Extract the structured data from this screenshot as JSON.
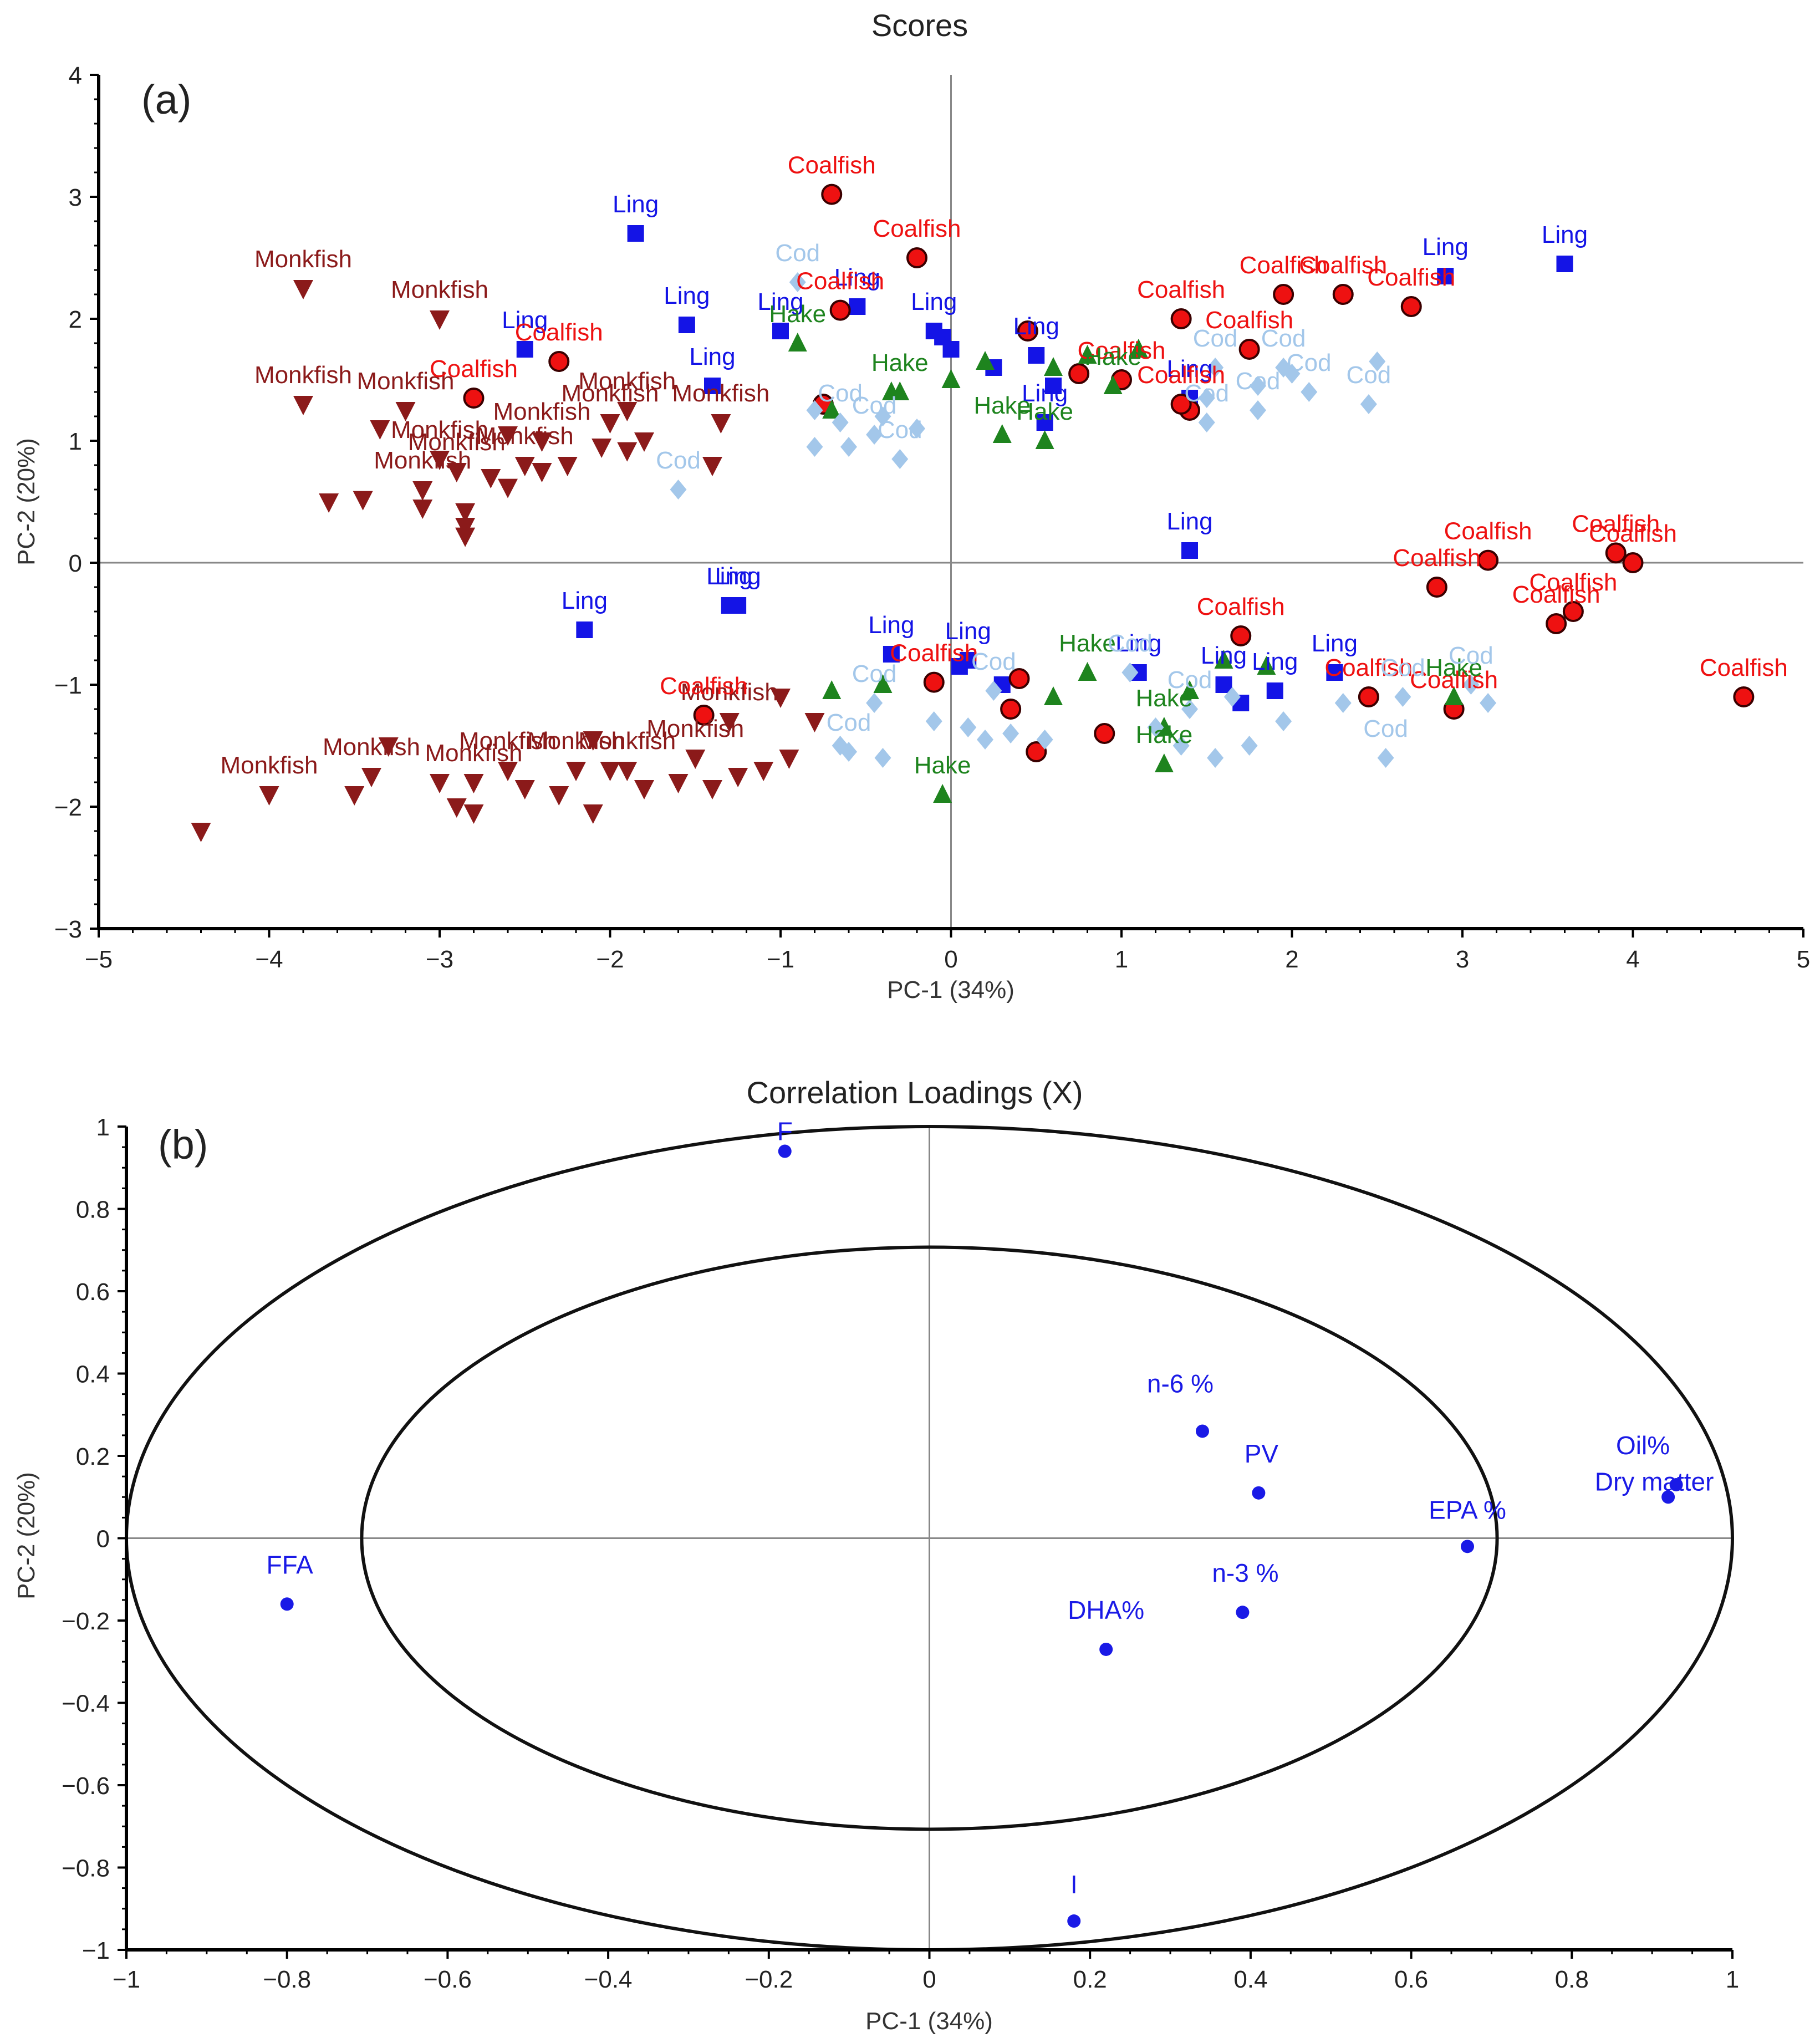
{
  "chart_data": [
    {
      "panel_label": "(a)",
      "type": "scatter",
      "title": "Scores",
      "xlabel": "PC-1 (34%)",
      "ylabel": "PC-2 (20%)",
      "xlim": [
        -5,
        5
      ],
      "ylim": [
        -3,
        4
      ],
      "xticks": [
        -5,
        -4,
        -3,
        -2,
        -1,
        0,
        1,
        2,
        3,
        4,
        5
      ],
      "yticks": [
        -3,
        -2,
        -1,
        0,
        1,
        2,
        3,
        4
      ],
      "grid": false,
      "reference_lines": {
        "x": 0,
        "y": 0
      },
      "series": [
        {
          "name": "Monkfish",
          "color": "#8b1a1a",
          "marker": "triangle-down",
          "labeled_points": [
            {
              "x": -3.8,
              "y": 2.25
            },
            {
              "x": -3.0,
              "y": 2.0
            },
            {
              "x": -3.8,
              "y": 1.3
            },
            {
              "x": -3.2,
              "y": 1.25
            },
            {
              "x": -2.0,
              "y": 1.15
            },
            {
              "x": -3.0,
              "y": 0.85
            },
            {
              "x": -1.35,
              "y": 1.15
            },
            {
              "x": -1.9,
              "y": 1.25
            },
            {
              "x": -2.5,
              "y": 0.8
            },
            {
              "x": -2.9,
              "y": 0.75
            },
            {
              "x": -3.1,
              "y": 0.6
            },
            {
              "x": -2.4,
              "y": 1.0
            },
            {
              "x": -4.0,
              "y": -1.9
            },
            {
              "x": -3.4,
              "y": -1.75
            },
            {
              "x": -2.6,
              "y": -1.7
            },
            {
              "x": -2.2,
              "y": -1.7
            },
            {
              "x": -1.9,
              "y": -1.7
            },
            {
              "x": -1.5,
              "y": -1.6
            },
            {
              "x": -2.8,
              "y": -1.8
            },
            {
              "x": -1.3,
              "y": -1.3
            }
          ],
          "points": [
            {
              "x": -4.4,
              "y": -2.2
            },
            {
              "x": -3.65,
              "y": 0.5
            },
            {
              "x": -3.45,
              "y": 0.52
            },
            {
              "x": -3.1,
              "y": 0.45
            },
            {
              "x": -2.85,
              "y": 0.42
            },
            {
              "x": -2.85,
              "y": 0.3
            },
            {
              "x": -2.85,
              "y": 0.22
            },
            {
              "x": -2.7,
              "y": 0.7
            },
            {
              "x": -2.6,
              "y": 0.62
            },
            {
              "x": -2.4,
              "y": 0.75
            },
            {
              "x": -2.25,
              "y": 0.8
            },
            {
              "x": -2.05,
              "y": 0.95
            },
            {
              "x": -1.9,
              "y": 0.92
            },
            {
              "x": -1.8,
              "y": 1.0
            },
            {
              "x": -1.4,
              "y": 0.8
            },
            {
              "x": -3.35,
              "y": 1.1
            },
            {
              "x": -2.6,
              "y": 1.05
            },
            {
              "x": -3.5,
              "y": -1.9
            },
            {
              "x": -3.0,
              "y": -1.8
            },
            {
              "x": -2.9,
              "y": -2.0
            },
            {
              "x": -2.8,
              "y": -2.05
            },
            {
              "x": -2.5,
              "y": -1.85
            },
            {
              "x": -2.3,
              "y": -1.9
            },
            {
              "x": -2.1,
              "y": -2.05
            },
            {
              "x": -2.0,
              "y": -1.7
            },
            {
              "x": -1.8,
              "y": -1.85
            },
            {
              "x": -1.6,
              "y": -1.8
            },
            {
              "x": -1.4,
              "y": -1.85
            },
            {
              "x": -1.25,
              "y": -1.75
            },
            {
              "x": -1.1,
              "y": -1.7
            },
            {
              "x": -0.95,
              "y": -1.6
            },
            {
              "x": -0.8,
              "y": -1.3
            },
            {
              "x": -1.0,
              "y": -1.1
            },
            {
              "x": -3.3,
              "y": -1.5
            },
            {
              "x": -2.1,
              "y": -1.45
            }
          ]
        },
        {
          "name": "Ling",
          "color": "#1414e6",
          "marker": "square",
          "labeled_points": [
            {
              "x": -1.85,
              "y": 2.7
            },
            {
              "x": -2.5,
              "y": 1.75
            },
            {
              "x": -1.55,
              "y": 1.95
            },
            {
              "x": -1.0,
              "y": 1.9
            },
            {
              "x": -0.55,
              "y": 2.1
            },
            {
              "x": -1.4,
              "y": 1.45
            },
            {
              "x": -0.1,
              "y": 1.9
            },
            {
              "x": 0.55,
              "y": 1.15
            },
            {
              "x": 2.9,
              "y": 2.35
            },
            {
              "x": 3.6,
              "y": 2.45
            },
            {
              "x": 1.4,
              "y": 1.35
            },
            {
              "x": 1.4,
              "y": 0.1
            },
            {
              "x": -2.15,
              "y": -0.55
            },
            {
              "x": -1.3,
              "y": -0.35
            },
            {
              "x": -1.25,
              "y": -0.35
            },
            {
              "x": -0.35,
              "y": -0.75
            },
            {
              "x": 1.1,
              "y": -0.9
            },
            {
              "x": 1.6,
              "y": -1.0
            },
            {
              "x": 2.25,
              "y": -0.9
            },
            {
              "x": 0.1,
              "y": -0.8
            },
            {
              "x": 0.5,
              "y": 1.7
            },
            {
              "x": 1.9,
              "y": -1.05
            }
          ],
          "points": [
            {
              "x": -0.05,
              "y": 1.85
            },
            {
              "x": 0.0,
              "y": 1.75
            },
            {
              "x": 0.25,
              "y": 1.6
            },
            {
              "x": 0.6,
              "y": 1.45
            },
            {
              "x": 0.05,
              "y": -0.85
            },
            {
              "x": 0.3,
              "y": -1.0
            },
            {
              "x": 1.7,
              "y": -1.15
            }
          ]
        },
        {
          "name": "Coalfish",
          "color": "#ee1111",
          "marker": "circle",
          "labeled_points": [
            {
              "x": -0.7,
              "y": 3.02
            },
            {
              "x": -0.2,
              "y": 2.5
            },
            {
              "x": -0.65,
              "y": 2.07
            },
            {
              "x": -2.3,
              "y": 1.65
            },
            {
              "x": -2.8,
              "y": 1.35
            },
            {
              "x": 1.35,
              "y": 2.0
            },
            {
              "x": 1.95,
              "y": 2.2
            },
            {
              "x": 2.3,
              "y": 2.2
            },
            {
              "x": 2.7,
              "y": 2.1
            },
            {
              "x": 1.75,
              "y": 1.75
            },
            {
              "x": 1.0,
              "y": 1.5
            },
            {
              "x": 1.35,
              "y": 1.3
            },
            {
              "x": 3.15,
              "y": 0.02
            },
            {
              "x": 3.9,
              "y": 0.08
            },
            {
              "x": 4.0,
              "y": 0.0
            },
            {
              "x": 2.85,
              "y": -0.2
            },
            {
              "x": 3.65,
              "y": -0.4
            },
            {
              "x": 3.55,
              "y": -0.5
            },
            {
              "x": 4.65,
              "y": -1.1
            },
            {
              "x": 1.7,
              "y": -0.6
            },
            {
              "x": 2.95,
              "y": -1.2
            },
            {
              "x": 2.45,
              "y": -1.1
            },
            {
              "x": -0.1,
              "y": -0.98
            },
            {
              "x": -1.45,
              "y": -1.25
            }
          ],
          "points": [
            {
              "x": 0.5,
              "y": -1.55
            },
            {
              "x": 0.9,
              "y": -1.4
            },
            {
              "x": 0.35,
              "y": -1.2
            },
            {
              "x": 0.45,
              "y": 1.9
            },
            {
              "x": 0.75,
              "y": 1.55
            },
            {
              "x": -0.75,
              "y": 1.3
            },
            {
              "x": 1.4,
              "y": 1.25
            },
            {
              "x": 0.4,
              "y": -0.95
            }
          ]
        },
        {
          "name": "Hake",
          "color": "#1e841e",
          "marker": "triangle-up",
          "labeled_points": [
            {
              "x": -0.9,
              "y": 1.8
            },
            {
              "x": -0.3,
              "y": 1.4
            },
            {
              "x": 0.3,
              "y": 1.05
            },
            {
              "x": 0.55,
              "y": 1.0
            },
            {
              "x": 0.95,
              "y": 1.45
            },
            {
              "x": -0.05,
              "y": -1.9
            },
            {
              "x": 1.25,
              "y": -1.65
            },
            {
              "x": 2.95,
              "y": -1.1
            },
            {
              "x": 0.8,
              "y": -0.9
            },
            {
              "x": 1.25,
              "y": -1.35
            }
          ],
          "points": [
            {
              "x": -0.7,
              "y": 1.25
            },
            {
              "x": -0.35,
              "y": 1.4
            },
            {
              "x": 0.0,
              "y": 1.5
            },
            {
              "x": 0.2,
              "y": 1.65
            },
            {
              "x": 0.6,
              "y": 1.6
            },
            {
              "x": 0.8,
              "y": 1.7
            },
            {
              "x": 1.1,
              "y": 1.75
            },
            {
              "x": 1.6,
              "y": -0.8
            },
            {
              "x": 1.4,
              "y": -1.05
            },
            {
              "x": 0.6,
              "y": -1.1
            },
            {
              "x": -0.7,
              "y": -1.05
            },
            {
              "x": -0.4,
              "y": -1.0
            },
            {
              "x": 1.85,
              "y": -0.85
            }
          ]
        },
        {
          "name": "Cod",
          "color": "#a3c7ea",
          "marker": "diamond",
          "labeled_points": [
            {
              "x": -0.9,
              "y": 2.3
            },
            {
              "x": -1.6,
              "y": 0.6
            },
            {
              "x": -0.3,
              "y": 0.85
            },
            {
              "x": -0.45,
              "y": 1.05
            },
            {
              "x": -0.65,
              "y": 1.15
            },
            {
              "x": 1.5,
              "y": 1.15
            },
            {
              "x": 1.8,
              "y": 1.25
            },
            {
              "x": 2.1,
              "y": 1.4
            },
            {
              "x": 2.45,
              "y": 1.3
            },
            {
              "x": 1.55,
              "y": 1.6
            },
            {
              "x": 1.95,
              "y": 1.6
            },
            {
              "x": 2.55,
              "y": -1.6
            },
            {
              "x": 2.65,
              "y": -1.1
            },
            {
              "x": 3.05,
              "y": -1.0
            },
            {
              "x": 1.4,
              "y": -1.2
            },
            {
              "x": 1.05,
              "y": -0.9
            },
            {
              "x": 0.25,
              "y": -1.05
            },
            {
              "x": -0.45,
              "y": -1.15
            },
            {
              "x": -0.6,
              "y": -1.55
            }
          ],
          "points": [
            {
              "x": -0.8,
              "y": 1.25
            },
            {
              "x": -0.4,
              "y": 1.2
            },
            {
              "x": -0.2,
              "y": 1.1
            },
            {
              "x": -0.6,
              "y": 0.95
            },
            {
              "x": -0.8,
              "y": 0.95
            },
            {
              "x": 1.5,
              "y": 1.35
            },
            {
              "x": 1.8,
              "y": 1.45
            },
            {
              "x": 2.0,
              "y": 1.55
            },
            {
              "x": 2.5,
              "y": 1.65
            },
            {
              "x": 3.15,
              "y": -1.15
            },
            {
              "x": 2.3,
              "y": -1.15
            },
            {
              "x": 1.95,
              "y": -1.3
            },
            {
              "x": 1.75,
              "y": -1.5
            },
            {
              "x": 1.55,
              "y": -1.6
            },
            {
              "x": 1.35,
              "y": -1.5
            },
            {
              "x": 1.2,
              "y": -1.35
            },
            {
              "x": 0.55,
              "y": -1.45
            },
            {
              "x": 0.35,
              "y": -1.4
            },
            {
              "x": 0.2,
              "y": -1.45
            },
            {
              "x": 0.1,
              "y": -1.35
            },
            {
              "x": -0.1,
              "y": -1.3
            },
            {
              "x": -0.4,
              "y": -1.6
            },
            {
              "x": -0.65,
              "y": -1.5
            },
            {
              "x": 1.65,
              "y": -1.1
            }
          ]
        }
      ]
    },
    {
      "panel_label": "(b)",
      "type": "scatter",
      "title": "Correlation Loadings (X)",
      "xlabel": "PC-1 (34%)",
      "ylabel": "PC-2 (20%)",
      "xlim": [
        -1,
        1
      ],
      "ylim": [
        -1,
        1
      ],
      "xticks": [
        -1,
        -0.8,
        -0.6,
        -0.4,
        -0.2,
        0,
        0.2,
        0.4,
        0.6,
        0.8,
        1
      ],
      "yticks": [
        -1,
        -0.8,
        -0.6,
        -0.4,
        -0.2,
        0,
        0.2,
        0.4,
        0.6,
        0.8,
        1
      ],
      "grid": false,
      "reference_lines": {
        "x": 0,
        "y": 0
      },
      "ellipses": [
        {
          "radius": 1.0
        },
        {
          "radius": 0.707
        }
      ],
      "color": "#1a1ae6",
      "points": [
        {
          "label": "F",
          "x": -0.18,
          "y": 0.94
        },
        {
          "label": "n-6 %",
          "x": 0.34,
          "y": 0.26
        },
        {
          "label": "PV",
          "x": 0.41,
          "y": 0.11
        },
        {
          "label": "EPA %",
          "x": 0.67,
          "y": -0.02
        },
        {
          "label": "n-3 %",
          "x": 0.39,
          "y": -0.18
        },
        {
          "label": "DHA%",
          "x": 0.22,
          "y": -0.27
        },
        {
          "label": "FFA",
          "x": -0.8,
          "y": -0.16
        },
        {
          "label": "I",
          "x": 0.18,
          "y": -0.93
        },
        {
          "label": "Oil%",
          "x": 0.93,
          "y": 0.13
        },
        {
          "label": "Dry matter",
          "x": 0.92,
          "y": 0.1
        }
      ]
    }
  ]
}
